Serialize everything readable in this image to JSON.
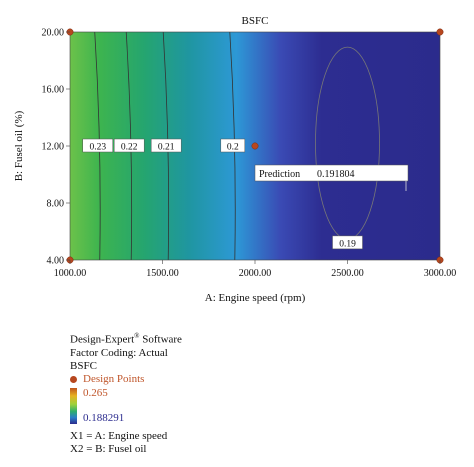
{
  "chart_data": {
    "type": "heatmap",
    "title": "BSFC",
    "xlabel": "A: Engine speed (rpm)",
    "ylabel": "B: Fusel oil (%)",
    "xlim": [
      1000,
      3000
    ],
    "ylim": [
      4,
      20
    ],
    "x_ticks": [
      "1000.00",
      "1500.00",
      "2000.00",
      "2500.00",
      "3000.00"
    ],
    "y_ticks": [
      "4.00",
      "8.00",
      "12.00",
      "16.00",
      "20.00"
    ],
    "color_range": [
      0.188291,
      0.265
    ],
    "colors": {
      "high": "#c0541d",
      "mid": "#2fae6c",
      "low": "#2b2b8e"
    },
    "contours": [
      {
        "label": "0.23",
        "x": 1150,
        "y": 12
      },
      {
        "label": "0.22",
        "x": 1320,
        "y": 12
      },
      {
        "label": "0.21",
        "x": 1520,
        "y": 12
      },
      {
        "label": "0.2",
        "x": 1880,
        "y": 12
      },
      {
        "label": "0.19",
        "x": 2500,
        "y": 5.2
      }
    ],
    "design_points": [
      {
        "x": 1000,
        "y": 20
      },
      {
        "x": 3000,
        "y": 20
      },
      {
        "x": 1000,
        "y": 4
      },
      {
        "x": 3000,
        "y": 4
      },
      {
        "x": 2000,
        "y": 12
      }
    ],
    "prediction": {
      "label": "Prediction",
      "value": "0.191804"
    }
  },
  "legend": {
    "software": "Design-Expert",
    "reg_mark": "®",
    "software_suffix": " Software",
    "coding": "Factor Coding: Actual",
    "response": "BSFC",
    "design_points_label": "Design Points",
    "high": "0.265",
    "low": "0.188291",
    "x1": "X1 = A: Engine speed",
    "x2": "X2 = B: Fusel oil"
  }
}
